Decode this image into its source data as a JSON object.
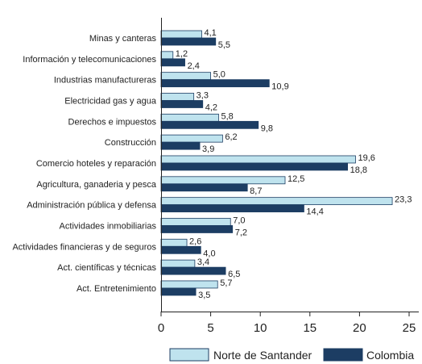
{
  "chart_data": {
    "type": "bar",
    "orientation": "horizontal",
    "categories": [
      "Minas y canteras",
      "Información y telecomunicaciones",
      "Industrias manufactureras",
      "Electricidad gas y agua",
      "Derechos e impuestos",
      "Construcción",
      "Comercio hoteles y reparación",
      "Agricultura, ganaderia y pesca",
      "Administración pública y defensa",
      "Actividades inmobiliarias",
      "Actividades financieras y de seguros",
      "Act. científicas y técnicas",
      "Act. Entretenimiento"
    ],
    "series": [
      {
        "name": "Norte de Santander",
        "color": "#bfe3ee",
        "values": [
          4.1,
          1.2,
          5.0,
          3.3,
          5.8,
          6.2,
          19.6,
          12.5,
          23.3,
          7.0,
          2.6,
          3.4,
          5.7
        ],
        "labels": [
          "4,1",
          "1,2",
          "5,0",
          "3,3",
          "5,8",
          "6,2",
          "19,6",
          "12,5",
          "23,3",
          "7,0",
          "2,6",
          "3,4",
          "5,7"
        ]
      },
      {
        "name": "Colombia",
        "color": "#1c3d63",
        "values": [
          5.5,
          2.4,
          10.9,
          4.2,
          9.8,
          3.9,
          18.8,
          8.7,
          14.4,
          7.2,
          4.0,
          6.5,
          3.5
        ],
        "labels": [
          "5,5",
          "2,4",
          "10,9",
          "4,2",
          "9,8",
          "3,9",
          "18,8",
          "8,7",
          "14,4",
          "7,2",
          "4,0",
          "6,5",
          "3,5"
        ]
      }
    ],
    "xlim": [
      0,
      25
    ],
    "xticks": [
      0,
      5,
      10,
      15,
      20,
      25
    ],
    "grid": false,
    "legend_position": "bottom"
  }
}
